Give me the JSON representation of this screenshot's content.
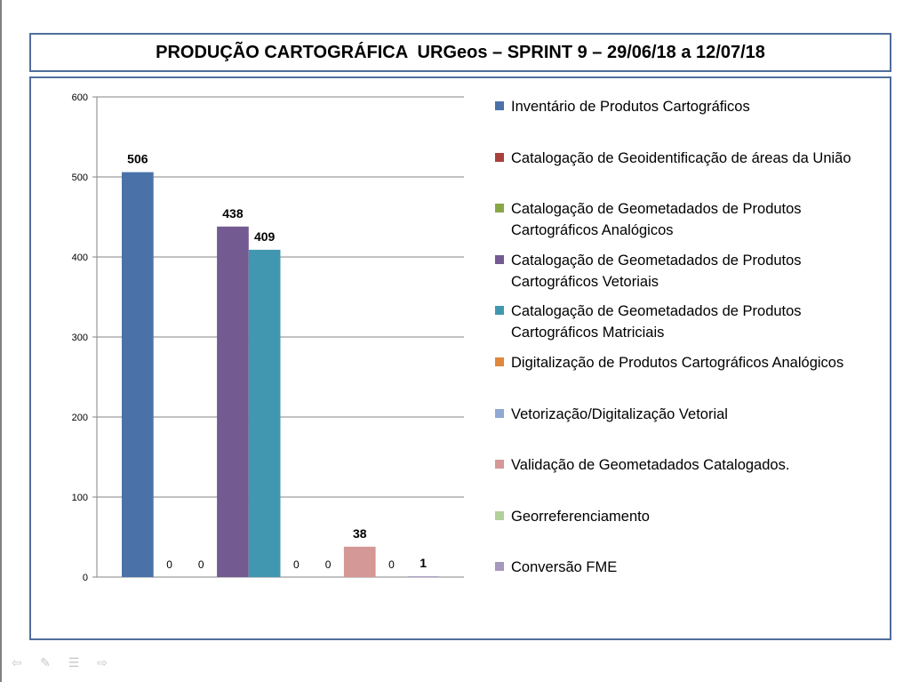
{
  "title": "PRODUÇÃO CARTOGRÁFICA  URGeos – SPRINT 9 – 29/06/18 a 12/07/18",
  "chart_data": {
    "type": "bar",
    "ylim": [
      0,
      600
    ],
    "yticks": [
      0,
      100,
      200,
      300,
      400,
      500,
      600
    ],
    "grid": true,
    "legend_position": "right",
    "series": [
      {
        "name": "Inventário de Produtos Cartográficos",
        "value": 506,
        "color": "#4a72a8"
      },
      {
        "name": "Catalogação de Geoidentificação de áreas da União",
        "value": 0,
        "color": "#a8403c"
      },
      {
        "name": "Catalogação de Geometadados de Produtos Cartográficos Analógicos",
        "value": 0,
        "color": "#88a848"
      },
      {
        "name": "Catalogação de Geometadados de Produtos Cartográficos Vetoriais",
        "value": 438,
        "color": "#735a91"
      },
      {
        "name": "Catalogação de Geometadados de Produtos Cartográficos Matriciais",
        "value": 409,
        "color": "#4297b0"
      },
      {
        "name": "Digitalização de Produtos Cartográficos Analógicos",
        "value": 0,
        "color": "#e0883c"
      },
      {
        "name": "Vetorização/Digitalização Vetorial",
        "value": 0,
        "color": "#8fa8d4"
      },
      {
        "name": "Validação de Geometadados Catalogados.",
        "value": 38,
        "color": "#d49896"
      },
      {
        "name": "Georreferenciamento",
        "value": 0,
        "color": "#b4d09a"
      },
      {
        "name": "Conversão FME",
        "value": 1,
        "color": "#a598bd"
      }
    ]
  },
  "legend_lines": [
    [
      "Inventário de Produtos Cartográficos"
    ],
    [
      "Catalogação de Geoidentificação de áreas da União"
    ],
    [
      "Catalogação de Geometadados de Produtos",
      "Cartográficos Analógicos"
    ],
    [
      "Catalogação de Geometadados de Produtos",
      "Cartográficos Vetoriais"
    ],
    [
      "Catalogação de Geometadados de Produtos",
      "Cartográficos Matriciais"
    ],
    [
      "Digitalização de Produtos Cartográficos Analógicos"
    ],
    [
      "Vetorização/Digitalização Vetorial"
    ],
    [
      "Validação de Geometadados Catalogados."
    ],
    [
      "Georreferenciamento"
    ],
    [
      "Conversão FME"
    ]
  ],
  "nav_icons": [
    "arrow-left-icon",
    "pen-icon",
    "menu-icon",
    "arrow-right-icon"
  ]
}
